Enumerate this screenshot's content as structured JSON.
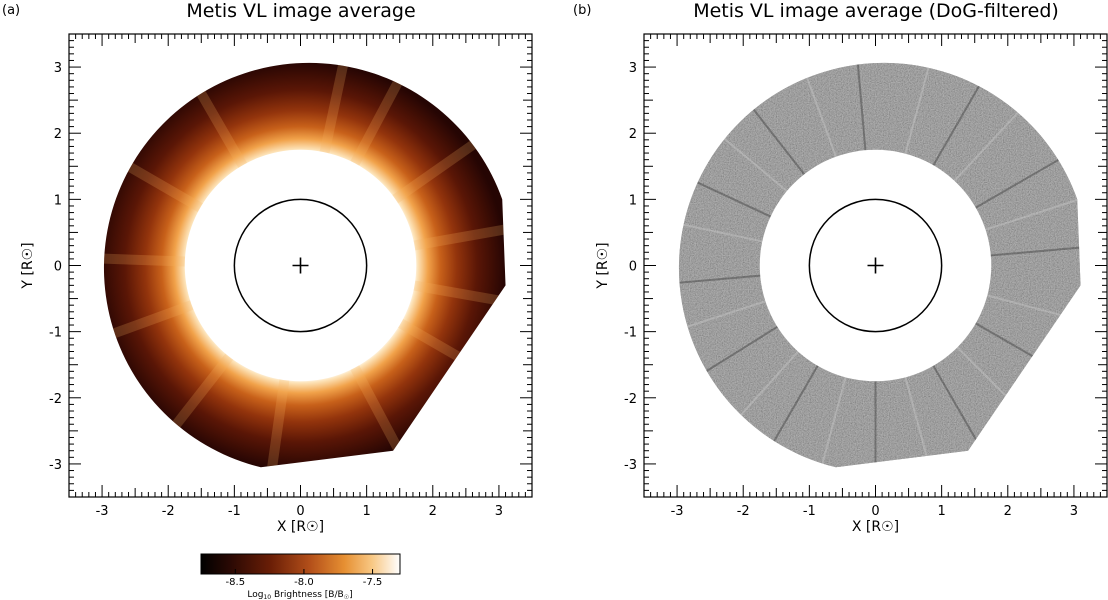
{
  "figure": {
    "colors": {
      "background": "#ffffff",
      "occulter": "#ffffff",
      "limb_circle": "#000000",
      "dog_gray": "#7a7a7a",
      "colormap": [
        "#000000",
        "#1a0504",
        "#3d0d05",
        "#6a1e06",
        "#9c3c0a",
        "#c66216",
        "#e68f32",
        "#f6bd6c",
        "#fde7c4",
        "#ffffff"
      ]
    }
  },
  "chart_data": [
    {
      "type": "image",
      "panel_label": "(a)",
      "title": "Metis VL image average",
      "xlabel": "X [R☉]",
      "ylabel": "Y [R☉]",
      "xlim": [
        -3.5,
        3.5
      ],
      "ylim": [
        -3.5,
        3.5
      ],
      "xticks": [
        -3,
        -2,
        -1,
        0,
        1,
        2,
        3
      ],
      "yticks": [
        -3,
        -2,
        -1,
        0,
        1,
        2,
        3
      ],
      "xtick_labels": [
        "-3",
        "-2",
        "-1",
        "0",
        "1",
        "2",
        "3"
      ],
      "ytick_labels": [
        "-3",
        "-2",
        "-1",
        "0",
        "1",
        "2",
        "3"
      ],
      "minor_tick_step": 0.1,
      "inner_occulter_radius": 1.75,
      "outer_field_radius": 3.1,
      "field_edge_points": [
        [
          3.05,
          1.0
        ],
        [
          3.1,
          -0.3
        ],
        [
          1.4,
          -2.8
        ],
        [
          -0.6,
          -3.05
        ]
      ],
      "solar_limb_radius": 1.0,
      "sun_center": [
        0,
        0
      ],
      "colormap_name": "red-temperature",
      "colorbar": {
        "label_prefix": "Log",
        "label_subscript": "10",
        "label_suffix": " Brightness [B/B",
        "label_end_sub": "☉",
        "label_close": "]",
        "range": [
          -8.75,
          -7.3
        ],
        "ticks": [
          -8.5,
          -8.0,
          -7.5
        ],
        "tick_labels": [
          "-8.5",
          "-8.0",
          "-7.5"
        ]
      }
    },
    {
      "type": "image",
      "panel_label": "(b)",
      "title": "Metis VL image average (DoG-filtered)",
      "xlabel": "X [R☉]",
      "ylabel": "Y [R☉]",
      "xlim": [
        -3.5,
        3.5
      ],
      "ylim": [
        -3.5,
        3.5
      ],
      "xticks": [
        -3,
        -2,
        -1,
        0,
        1,
        2,
        3
      ],
      "yticks": [
        -3,
        -2,
        -1,
        0,
        1,
        2,
        3
      ],
      "xtick_labels": [
        "-3",
        "-2",
        "-1",
        "0",
        "1",
        "2",
        "3"
      ],
      "ytick_labels": [
        "-3",
        "-2",
        "-1",
        "0",
        "1",
        "2",
        "3"
      ],
      "minor_tick_step": 0.1,
      "inner_occulter_radius": 1.75,
      "outer_field_radius": 3.1,
      "field_edge_points": [
        [
          3.05,
          1.0
        ],
        [
          3.1,
          -0.3
        ],
        [
          1.4,
          -2.8
        ],
        [
          -0.6,
          -3.05
        ]
      ],
      "solar_limb_radius": 1.0,
      "sun_center": [
        0,
        0
      ],
      "colormap_name": "gray"
    }
  ]
}
